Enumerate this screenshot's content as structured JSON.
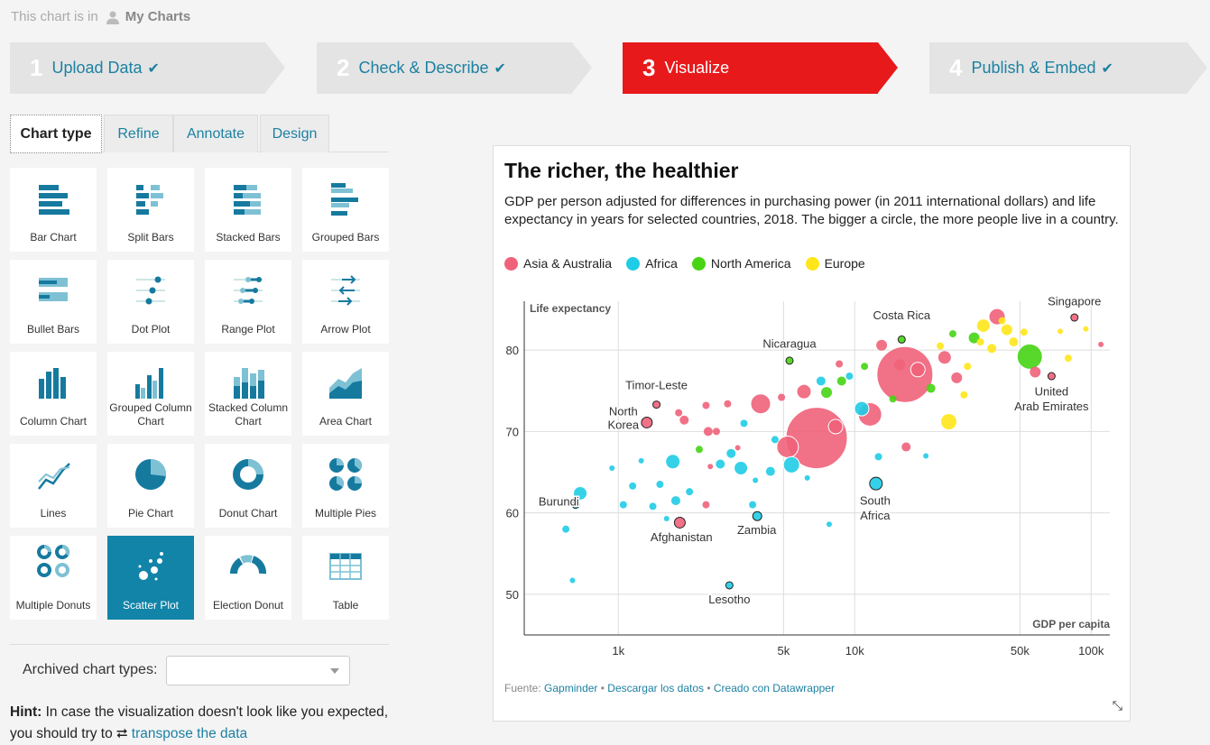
{
  "topline": {
    "prefix": "This chart is in",
    "folder": "My Charts"
  },
  "steps": [
    {
      "num": "1",
      "label": "Upload Data",
      "done": true
    },
    {
      "num": "2",
      "label": "Check & Describe",
      "done": true
    },
    {
      "num": "3",
      "label": "Visualize",
      "done": false
    },
    {
      "num": "4",
      "label": "Publish & Embed",
      "done": true
    }
  ],
  "tabs": [
    "Chart type",
    "Refine",
    "Annotate",
    "Design"
  ],
  "chart_types": [
    {
      "label": "Bar Chart",
      "icon": "bar-chart-icon"
    },
    {
      "label": "Split Bars",
      "icon": "split-bars-icon"
    },
    {
      "label": "Stacked Bars",
      "icon": "stacked-bars-icon"
    },
    {
      "label": "Grouped Bars",
      "icon": "grouped-bars-icon"
    },
    {
      "label": "Bullet Bars",
      "icon": "bullet-bars-icon"
    },
    {
      "label": "Dot Plot",
      "icon": "dot-plot-icon"
    },
    {
      "label": "Range Plot",
      "icon": "range-plot-icon"
    },
    {
      "label": "Arrow Plot",
      "icon": "arrow-plot-icon"
    },
    {
      "label": "Column Chart",
      "icon": "column-chart-icon"
    },
    {
      "label": "Grouped Column Chart",
      "icon": "grouped-column-chart-icon"
    },
    {
      "label": "Stacked Column Chart",
      "icon": "stacked-column-chart-icon"
    },
    {
      "label": "Area Chart",
      "icon": "area-chart-icon"
    },
    {
      "label": "Lines",
      "icon": "lines-icon"
    },
    {
      "label": "Pie Chart",
      "icon": "pie-chart-icon"
    },
    {
      "label": "Donut Chart",
      "icon": "donut-chart-icon"
    },
    {
      "label": "Multiple Pies",
      "icon": "multiple-pies-icon"
    },
    {
      "label": "Multiple Donuts",
      "icon": "multiple-donuts-icon"
    },
    {
      "label": "Scatter Plot",
      "icon": "scatter-plot-icon"
    },
    {
      "label": "Election Donut",
      "icon": "election-donut-icon"
    },
    {
      "label": "Table",
      "icon": "table-icon"
    }
  ],
  "archived_label": "Archived chart types:",
  "hint": {
    "bold": "Hint:",
    "text": "In case the visualization doesn't look like you expected, you should try to",
    "link": "transpose the data"
  },
  "colors": {
    "accent": "#e8191b",
    "brand": "#1d81a2",
    "asia": "#f0627a",
    "africa": "#1fcce6",
    "namerica": "#46d414",
    "europe": "#ffe51a"
  },
  "chart_data": {
    "type": "scatter",
    "title": "The richer, the healthier",
    "subtitle": "GDP per person adjusted for differences in purchasing power (in 2011 international dollars) and life expectancy in years for selected countries, 2018. The bigger a circle, the more people live in a country.",
    "xlabel": "GDP per capita",
    "ylabel": "Life expectancy",
    "x_scale": "log",
    "xlim": [
      400,
      120000
    ],
    "ylim": [
      45,
      86
    ],
    "x_ticks": [
      1000,
      5000,
      10000,
      50000,
      100000
    ],
    "x_tick_labels": [
      "1k",
      "5k",
      "10k",
      "50k",
      "100k"
    ],
    "y_ticks": [
      50,
      60,
      70,
      80
    ],
    "legend": [
      {
        "name": "Asia & Australia",
        "color": "#f0627a"
      },
      {
        "name": "Africa",
        "color": "#1fcce6"
      },
      {
        "name": "North America",
        "color": "#46d414"
      },
      {
        "name": "Europe",
        "color": "#ffe51a"
      }
    ],
    "labels": [
      {
        "text": "Singapore",
        "x": 85000,
        "y": 85.5
      },
      {
        "text": "Costa Rica",
        "x": 15800,
        "y": 83.8
      },
      {
        "text": "Nicaragua",
        "x": 5300,
        "y": 80.3
      },
      {
        "text": "Timor-Leste",
        "x": 1450,
        "y": 75.2
      },
      {
        "text": "North",
        "x": 1050,
        "y": 72.0
      },
      {
        "text": "Korea",
        "x": 1050,
        "y": 70.3
      },
      {
        "text": "Burundi",
        "x": 560,
        "y": 60.9
      },
      {
        "text": "Afghanistan",
        "x": 1850,
        "y": 56.5
      },
      {
        "text": "Zambia",
        "x": 3850,
        "y": 57.4
      },
      {
        "text": "Lesotho",
        "x": 2950,
        "y": 48.9
      },
      {
        "text": "South",
        "x": 12200,
        "y": 61.0
      },
      {
        "text": "Africa",
        "x": 12200,
        "y": 59.2
      },
      {
        "text": "United",
        "x": 68000,
        "y": 74.4
      },
      {
        "text": "Arab Emirates",
        "x": 68000,
        "y": 72.6
      }
    ],
    "points": [
      {
        "x": 85000,
        "y": 84.0,
        "r": 4,
        "c": "#f0627a",
        "o": true
      },
      {
        "x": 15800,
        "y": 81.3,
        "r": 4,
        "c": "#46d414",
        "o": true
      },
      {
        "x": 5300,
        "y": 78.7,
        "r": 4,
        "c": "#46d414",
        "o": true
      },
      {
        "x": 1450,
        "y": 73.3,
        "r": 4,
        "c": "#f0627a",
        "o": true
      },
      {
        "x": 1320,
        "y": 71.1,
        "r": 6,
        "c": "#f0627a",
        "o": true
      },
      {
        "x": 660,
        "y": 61.0,
        "r": 4,
        "c": "#1fcce6",
        "o": true
      },
      {
        "x": 1820,
        "y": 58.8,
        "r": 6,
        "c": "#f0627a",
        "o": true
      },
      {
        "x": 3870,
        "y": 59.6,
        "r": 5,
        "c": "#1fcce6",
        "o": true
      },
      {
        "x": 2950,
        "y": 51.1,
        "r": 4,
        "c": "#1fcce6",
        "o": true
      },
      {
        "x": 12300,
        "y": 63.6,
        "r": 7,
        "c": "#1fcce6",
        "o": true
      },
      {
        "x": 68000,
        "y": 76.8,
        "r": 4,
        "c": "#f0627a",
        "o": true
      },
      {
        "x": 6900,
        "y": 69.2,
        "r": 34,
        "c": "#f0627a",
        "o": false
      },
      {
        "x": 16300,
        "y": 77.0,
        "r": 31,
        "c": "#f0627a",
        "o": false
      },
      {
        "x": 55000,
        "y": 79.2,
        "r": 14,
        "c": "#46d414",
        "o": false
      },
      {
        "x": 40000,
        "y": 84.1,
        "r": 9,
        "c": "#f0627a",
        "o": false
      },
      {
        "x": 11600,
        "y": 72.1,
        "r": 13,
        "c": "#f0627a",
        "o": false
      },
      {
        "x": 5200,
        "y": 68.1,
        "r": 12,
        "c": "#f0627a",
        "o": false
      },
      {
        "x": 4000,
        "y": 73.4,
        "r": 11,
        "c": "#f0627a",
        "o": false
      },
      {
        "x": 8300,
        "y": 70.6,
        "r": 8,
        "c": "#f0627a",
        "o": false
      },
      {
        "x": 6100,
        "y": 74.9,
        "r": 8,
        "c": "#f0627a",
        "o": false
      },
      {
        "x": 10700,
        "y": 72.8,
        "r": 8,
        "c": "#1fcce6",
        "o": false
      },
      {
        "x": 5400,
        "y": 65.9,
        "r": 9,
        "c": "#1fcce6",
        "o": false
      },
      {
        "x": 1700,
        "y": 66.3,
        "r": 8,
        "c": "#1fcce6",
        "o": false
      },
      {
        "x": 690,
        "y": 62.4,
        "r": 7,
        "c": "#1fcce6",
        "o": false
      },
      {
        "x": 25000,
        "y": 71.2,
        "r": 9,
        "c": "#ffe51a",
        "o": false
      },
      {
        "x": 24000,
        "y": 79.1,
        "r": 7,
        "c": "#f0627a",
        "o": false
      },
      {
        "x": 35000,
        "y": 83.0,
        "r": 7,
        "c": "#ffe51a",
        "o": false
      },
      {
        "x": 32000,
        "y": 81.5,
        "r": 6,
        "c": "#46d414",
        "o": false
      },
      {
        "x": 44000,
        "y": 82.5,
        "r": 6,
        "c": "#ffe51a",
        "o": false
      },
      {
        "x": 58000,
        "y": 77.3,
        "r": 6,
        "c": "#f0627a",
        "o": false
      },
      {
        "x": 15500,
        "y": 78.2,
        "r": 6,
        "c": "#f0627a",
        "o": false
      },
      {
        "x": 18500,
        "y": 77.6,
        "r": 8,
        "c": "#f0627a",
        "o": false
      },
      {
        "x": 13000,
        "y": 80.6,
        "r": 6,
        "c": "#f0627a",
        "o": false
      },
      {
        "x": 27000,
        "y": 76.6,
        "r": 6,
        "c": "#f0627a",
        "o": false
      },
      {
        "x": 8800,
        "y": 76.2,
        "r": 5,
        "c": "#46d414",
        "o": false
      },
      {
        "x": 7600,
        "y": 74.8,
        "r": 6,
        "c": "#46d414",
        "o": false
      },
      {
        "x": 7200,
        "y": 76.2,
        "r": 5,
        "c": "#1fcce6",
        "o": false
      },
      {
        "x": 4400,
        "y": 65.1,
        "r": 5,
        "c": "#1fcce6",
        "o": false
      },
      {
        "x": 3300,
        "y": 65.5,
        "r": 7,
        "c": "#1fcce6",
        "o": false
      },
      {
        "x": 2700,
        "y": 66.0,
        "r": 5,
        "c": "#1fcce6",
        "o": false
      },
      {
        "x": 2400,
        "y": 70.0,
        "r": 5,
        "c": "#f0627a",
        "o": false
      },
      {
        "x": 1900,
        "y": 71.4,
        "r": 5,
        "c": "#f0627a",
        "o": false
      },
      {
        "x": 2600,
        "y": 70.0,
        "r": 4,
        "c": "#f0627a",
        "o": false
      },
      {
        "x": 3400,
        "y": 71.0,
        "r": 4,
        "c": "#1fcce6",
        "o": false
      },
      {
        "x": 3000,
        "y": 67.3,
        "r": 5,
        "c": "#1fcce6",
        "o": false
      },
      {
        "x": 1150,
        "y": 63.3,
        "r": 4,
        "c": "#1fcce6",
        "o": false
      },
      {
        "x": 1050,
        "y": 61.0,
        "r": 4,
        "c": "#1fcce6",
        "o": false
      },
      {
        "x": 1500,
        "y": 63.5,
        "r": 4,
        "c": "#1fcce6",
        "o": false
      },
      {
        "x": 1400,
        "y": 60.8,
        "r": 4,
        "c": "#1fcce6",
        "o": false
      },
      {
        "x": 1750,
        "y": 61.5,
        "r": 5,
        "c": "#1fcce6",
        "o": false
      },
      {
        "x": 2000,
        "y": 62.6,
        "r": 4,
        "c": "#1fcce6",
        "o": false
      },
      {
        "x": 600,
        "y": 58.0,
        "r": 4,
        "c": "#1fcce6",
        "o": false
      },
      {
        "x": 640,
        "y": 51.7,
        "r": 3,
        "c": "#1fcce6",
        "o": false
      },
      {
        "x": 2200,
        "y": 67.8,
        "r": 4,
        "c": "#46d414",
        "o": false
      },
      {
        "x": 2350,
        "y": 61.0,
        "r": 4,
        "c": "#f0627a",
        "o": false
      },
      {
        "x": 3700,
        "y": 61.0,
        "r": 4,
        "c": "#1fcce6",
        "o": false
      },
      {
        "x": 7800,
        "y": 58.6,
        "r": 3,
        "c": "#1fcce6",
        "o": false
      },
      {
        "x": 12600,
        "y": 66.9,
        "r": 4,
        "c": "#1fcce6",
        "o": false
      },
      {
        "x": 16500,
        "y": 68.1,
        "r": 5,
        "c": "#f0627a",
        "o": false
      },
      {
        "x": 20000,
        "y": 67.0,
        "r": 3,
        "c": "#1fcce6",
        "o": false
      },
      {
        "x": 21000,
        "y": 75.3,
        "r": 5,
        "c": "#46d414",
        "o": false
      },
      {
        "x": 29000,
        "y": 74.5,
        "r": 4,
        "c": "#ffe51a",
        "o": false
      },
      {
        "x": 38000,
        "y": 80.2,
        "r": 5,
        "c": "#ffe51a",
        "o": false
      },
      {
        "x": 47000,
        "y": 81.0,
        "r": 5,
        "c": "#ffe51a",
        "o": false
      },
      {
        "x": 80000,
        "y": 79.0,
        "r": 4,
        "c": "#ffe51a",
        "o": false
      },
      {
        "x": 110000,
        "y": 80.7,
        "r": 3,
        "c": "#f0627a",
        "o": false
      },
      {
        "x": 95000,
        "y": 82.6,
        "r": 3,
        "c": "#ffe51a",
        "o": false
      },
      {
        "x": 9500,
        "y": 76.8,
        "r": 4,
        "c": "#1fcce6",
        "o": false
      },
      {
        "x": 11000,
        "y": 78.0,
        "r": 4,
        "c": "#46d414",
        "o": false
      },
      {
        "x": 8600,
        "y": 78.3,
        "r": 4,
        "c": "#f0627a",
        "o": false
      },
      {
        "x": 4900,
        "y": 74.2,
        "r": 4,
        "c": "#f0627a",
        "o": false
      },
      {
        "x": 2900,
        "y": 73.4,
        "r": 4,
        "c": "#f0627a",
        "o": false
      },
      {
        "x": 2350,
        "y": 73.2,
        "r": 4,
        "c": "#f0627a",
        "o": false
      },
      {
        "x": 1800,
        "y": 72.3,
        "r": 4,
        "c": "#f0627a",
        "o": false
      },
      {
        "x": 14500,
        "y": 74.0,
        "r": 4,
        "c": "#46d414",
        "o": false
      },
      {
        "x": 23000,
        "y": 80.5,
        "r": 4,
        "c": "#ffe51a",
        "o": false
      },
      {
        "x": 26000,
        "y": 82.0,
        "r": 4,
        "c": "#46d414",
        "o": false
      },
      {
        "x": 30000,
        "y": 78.0,
        "r": 4,
        "c": "#ffe51a",
        "o": false
      },
      {
        "x": 52000,
        "y": 82.2,
        "r": 4,
        "c": "#ffe51a",
        "o": false
      },
      {
        "x": 34000,
        "y": 81.0,
        "r": 4,
        "c": "#ffe51a",
        "o": false
      },
      {
        "x": 42000,
        "y": 83.6,
        "r": 4,
        "c": "#ffe51a",
        "o": false
      },
      {
        "x": 74000,
        "y": 82.3,
        "r": 3,
        "c": "#ffe51a",
        "o": false
      },
      {
        "x": 1250,
        "y": 66.4,
        "r": 3,
        "c": "#1fcce6",
        "o": false
      },
      {
        "x": 940,
        "y": 65.5,
        "r": 3,
        "c": "#1fcce6",
        "o": false
      },
      {
        "x": 1600,
        "y": 59.3,
        "r": 3,
        "c": "#1fcce6",
        "o": false
      },
      {
        "x": 3800,
        "y": 64.0,
        "r": 3,
        "c": "#1fcce6",
        "o": false
      },
      {
        "x": 4600,
        "y": 69.0,
        "r": 4,
        "c": "#1fcce6",
        "o": false
      },
      {
        "x": 6300,
        "y": 64.3,
        "r": 3,
        "c": "#1fcce6",
        "o": false
      },
      {
        "x": 3200,
        "y": 68.0,
        "r": 3,
        "c": "#f0627a",
        "o": false
      },
      {
        "x": 2450,
        "y": 65.7,
        "r": 3,
        "c": "#f0627a",
        "o": false
      }
    ],
    "footer": {
      "prefix": "Fuente:",
      "source": "Gapminder",
      "download": "Descargar los datos",
      "created": "Creado con Datawrapper"
    }
  }
}
